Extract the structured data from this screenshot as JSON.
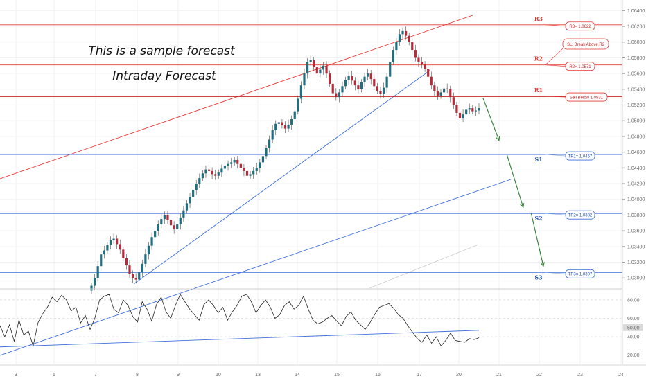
{
  "chart_data": [
    {
      "type": "candlestick",
      "title": "This is a sample forecast",
      "subtitle": "Intraday Forecast",
      "x_ticks": [
        "3",
        "6",
        "7",
        "8",
        "9",
        "10",
        "13",
        "14",
        "15",
        "16",
        "17",
        "20",
        "21",
        "22",
        "23",
        "24"
      ],
      "y_ticks": [
        "1.06400",
        "1.06200",
        "1.06000",
        "1.05800",
        "1.05600",
        "1.05400",
        "1.05200",
        "1.05000",
        "1.04800",
        "1.04600",
        "1.04400",
        "1.04200",
        "1.04000",
        "1.03800",
        "1.03600",
        "1.03400",
        "1.03200",
        "1.03000"
      ],
      "ylim": [
        1.0287,
        1.065
      ],
      "levels": [
        {
          "name": "R3",
          "value": 1.0622,
          "color": "#e53935",
          "label": "R3= 1.0622"
        },
        {
          "name": "R2",
          "value": 1.0571,
          "color": "#e53935",
          "label": "R2= 1.0571"
        },
        {
          "name": "R1",
          "value": 1.0531,
          "color": "#c62828",
          "label": "Sell Below 1.0531"
        },
        {
          "name": "S1",
          "value": 1.0457,
          "color": "#3f6fd8",
          "label": "TP1= 1.0457"
        },
        {
          "name": "S2",
          "value": 1.0382,
          "color": "#3f6fd8",
          "label": "TP2= 1.0382"
        },
        {
          "name": "S3",
          "value": 1.0307,
          "color": "#3f6fd8",
          "label": "TP3= 1.0307"
        }
      ],
      "stop_loss_label": "SL: Break Above R2",
      "candles": {
        "start_day": 6.9,
        "end_day": 20.5,
        "closes": [
          1.029,
          1.03,
          1.0315,
          1.033,
          1.0335,
          1.0342,
          1.0348,
          1.035,
          1.0343,
          1.0336,
          1.0325,
          1.0316,
          1.0305,
          1.03,
          1.0298,
          1.0307,
          1.0318,
          1.033,
          1.0341,
          1.0352,
          1.036,
          1.0368,
          1.0375,
          1.038,
          1.0374,
          1.0367,
          1.0362,
          1.0368,
          1.0377,
          1.0386,
          1.0395,
          1.0403,
          1.0412,
          1.042,
          1.0427,
          1.0433,
          1.0438,
          1.0436,
          1.0432,
          1.043,
          1.0434,
          1.0439,
          1.0443,
          1.0445,
          1.0447,
          1.045,
          1.0445,
          1.044,
          1.0436,
          1.043,
          1.0432,
          1.0436,
          1.044,
          1.0447,
          1.0455,
          1.0465,
          1.0476,
          1.0488,
          1.0496,
          1.0498,
          1.0494,
          1.049,
          1.0495,
          1.0502,
          1.0512,
          1.0528,
          1.0545,
          1.056,
          1.0575,
          1.0577,
          1.0568,
          1.056,
          1.0565,
          1.057,
          1.056,
          1.0547,
          1.0535,
          1.053,
          1.0536,
          1.0544,
          1.0552,
          1.0557,
          1.0551,
          1.0545,
          1.054,
          1.0549,
          1.0556,
          1.056,
          1.0553,
          1.0544,
          1.0538,
          1.0534,
          1.0542,
          1.0556,
          1.0575,
          1.059,
          1.06,
          1.061,
          1.0614,
          1.0608,
          1.06,
          1.059,
          1.058,
          1.0575,
          1.0572,
          1.0566,
          1.0556,
          1.0545,
          1.0538,
          1.0532,
          1.0536,
          1.0541,
          1.054,
          1.053,
          1.052,
          1.051,
          1.0503,
          1.0508,
          1.0514,
          1.0516,
          1.0512,
          1.0513,
          1.0516
        ]
      },
      "forecast_path": [
        {
          "day": 20.6,
          "value": 1.0529
        },
        {
          "day": 21.0,
          "value": 1.0475
        },
        {
          "day": 21.2,
          "value": 1.0456
        },
        {
          "day": 21.6,
          "value": 1.039
        },
        {
          "day": 21.8,
          "value": 1.0382
        },
        {
          "day": 22.1,
          "value": 1.0315
        }
      ]
    },
    {
      "type": "line",
      "title": "",
      "y_ticks": [
        "80.00",
        "60.00",
        "50.00",
        "40.00",
        "20.00"
      ],
      "current_value_label": "50.00",
      "ylim": [
        10,
        92
      ],
      "series": [
        {
          "values": [
            52,
            40,
            53,
            35,
            58,
            42,
            46,
            30,
            55,
            65,
            72,
            83,
            78,
            85,
            80,
            68,
            72,
            55,
            63,
            48,
            60,
            80,
            84,
            86,
            70,
            66,
            80,
            74,
            62,
            56,
            78,
            70,
            57,
            75,
            83,
            67,
            60,
            74,
            86,
            78,
            70,
            64,
            58,
            75,
            80,
            74,
            66,
            72,
            58,
            67,
            74,
            84,
            86,
            78,
            66,
            74,
            80,
            72,
            60,
            64,
            74,
            78,
            70,
            74,
            84,
            70,
            58,
            54,
            56,
            60,
            63,
            57,
            52,
            62,
            67,
            58,
            53,
            48,
            55,
            64,
            72,
            74,
            76,
            71,
            64,
            60,
            52,
            45,
            38,
            34,
            42,
            33,
            40,
            30,
            36,
            44,
            36,
            35,
            34,
            38,
            37,
            39
          ]
        }
      ]
    }
  ]
}
